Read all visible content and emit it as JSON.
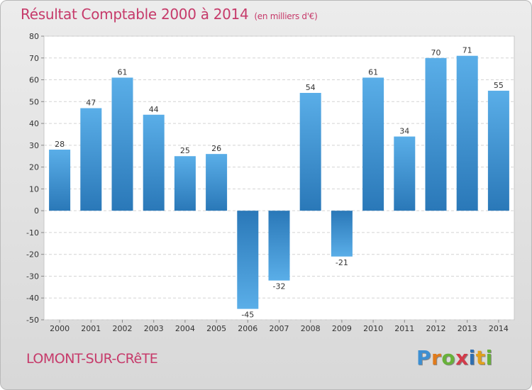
{
  "header": {
    "title": "Résultat Comptable 2000 à 2014",
    "subtitle": "(en milliers d'€)"
  },
  "footer": {
    "commune": "LOMONT-SUR-CRêTE",
    "brand_letters": [
      "P",
      "r",
      "o",
      "x",
      "i",
      "t",
      "i"
    ]
  },
  "colors": {
    "title": "#c63a6a",
    "bar_light": "#5aaee8",
    "bar_dark": "#2a78b8"
  },
  "chart_data": {
    "type": "bar",
    "title": "Résultat Comptable 2000 à 2014",
    "subtitle": "(en milliers d'€)",
    "xlabel": "",
    "ylabel": "",
    "categories": [
      "2000",
      "2001",
      "2002",
      "2003",
      "2004",
      "2005",
      "2006",
      "2007",
      "2008",
      "2009",
      "2010",
      "2011",
      "2012",
      "2013",
      "2014"
    ],
    "values": [
      28,
      47,
      61,
      44,
      25,
      26,
      -45,
      -32,
      54,
      -21,
      61,
      34,
      70,
      71,
      55
    ],
    "ylim": [
      -50,
      80
    ],
    "yticks": [
      80,
      70,
      60,
      50,
      40,
      30,
      20,
      10,
      0,
      -10,
      -20,
      -30,
      -40,
      -50
    ],
    "grid": true,
    "legend": "none"
  }
}
